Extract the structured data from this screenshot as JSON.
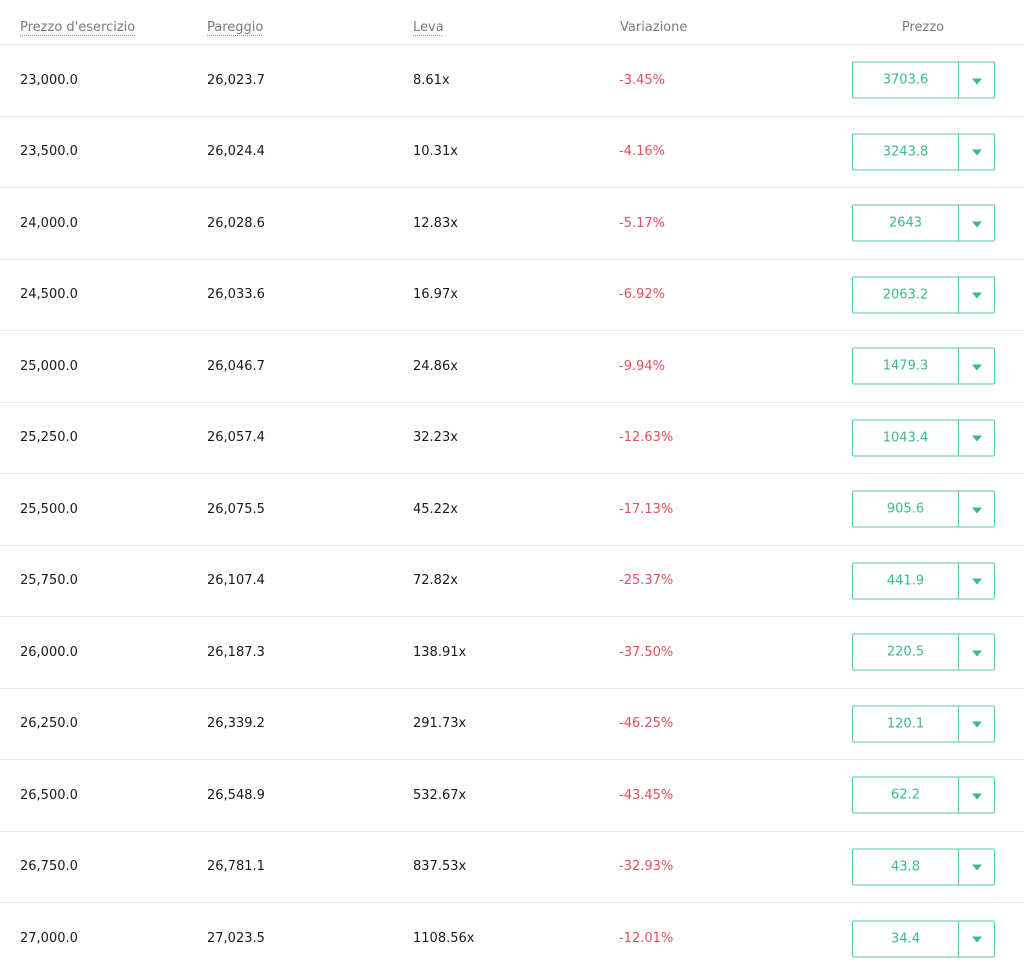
{
  "headers": {
    "strike": "Prezzo d'esercizio",
    "breakeven": "Pareggio",
    "leverage": "Leva",
    "change": "Variazione",
    "price": "Prezzo"
  },
  "colors": {
    "negative": "#e0505f",
    "accent": "#3dbb84"
  },
  "rows": [
    {
      "strike": "23,000.0",
      "breakeven": "26,023.7",
      "leverage": "8.61x",
      "change": "-3.45%",
      "price": "3703.6"
    },
    {
      "strike": "23,500.0",
      "breakeven": "26,024.4",
      "leverage": "10.31x",
      "change": "-4.16%",
      "price": "3243.8"
    },
    {
      "strike": "24,000.0",
      "breakeven": "26,028.6",
      "leverage": "12.83x",
      "change": "-5.17%",
      "price": "2643"
    },
    {
      "strike": "24,500.0",
      "breakeven": "26,033.6",
      "leverage": "16.97x",
      "change": "-6.92%",
      "price": "2063.2"
    },
    {
      "strike": "25,000.0",
      "breakeven": "26,046.7",
      "leverage": "24.86x",
      "change": "-9.94%",
      "price": "1479.3"
    },
    {
      "strike": "25,250.0",
      "breakeven": "26,057.4",
      "leverage": "32.23x",
      "change": "-12.63%",
      "price": "1043.4"
    },
    {
      "strike": "25,500.0",
      "breakeven": "26,075.5",
      "leverage": "45.22x",
      "change": "-17.13%",
      "price": "905.6"
    },
    {
      "strike": "25,750.0",
      "breakeven": "26,107.4",
      "leverage": "72.82x",
      "change": "-25.37%",
      "price": "441.9"
    },
    {
      "strike": "26,000.0",
      "breakeven": "26,187.3",
      "leverage": "138.91x",
      "change": "-37.50%",
      "price": "220.5"
    },
    {
      "strike": "26,250.0",
      "breakeven": "26,339.2",
      "leverage": "291.73x",
      "change": "-46.25%",
      "price": "120.1"
    },
    {
      "strike": "26,500.0",
      "breakeven": "26,548.9",
      "leverage": "532.67x",
      "change": "-43.45%",
      "price": "62.2"
    },
    {
      "strike": "26,750.0",
      "breakeven": "26,781.1",
      "leverage": "837.53x",
      "change": "-32.93%",
      "price": "43.8"
    },
    {
      "strike": "27,000.0",
      "breakeven": "27,023.5",
      "leverage": "1108.56x",
      "change": "-12.01%",
      "price": "34.4"
    }
  ]
}
